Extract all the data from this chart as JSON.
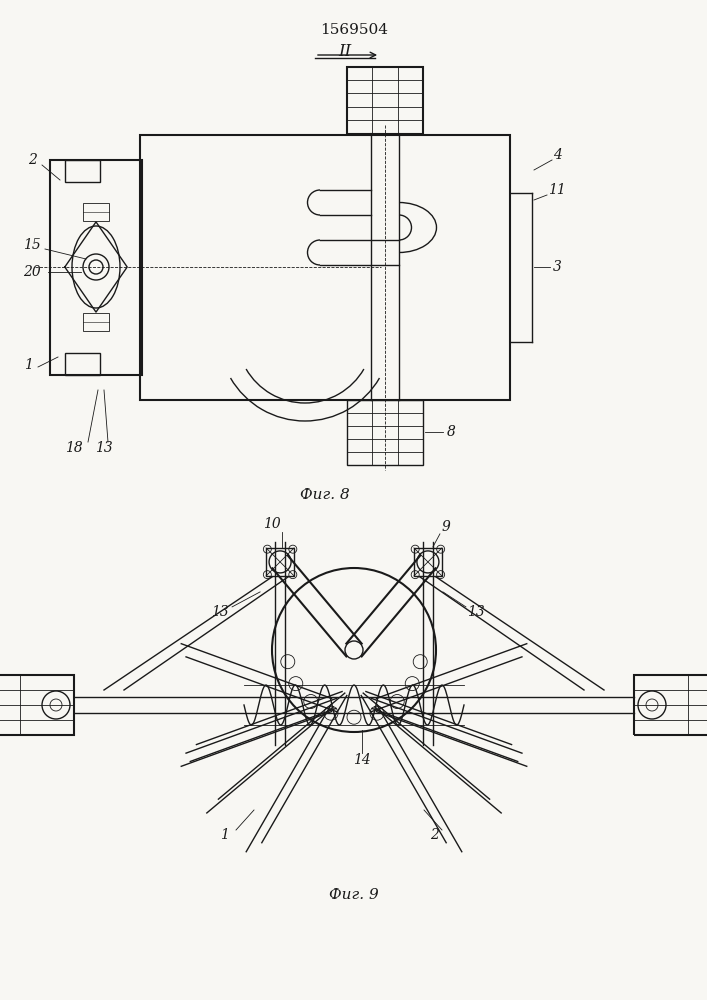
{
  "title": "1569504",
  "fig8_label": "Фиг. 8",
  "fig9_label": "Фиг. 9",
  "arrow_label": "II",
  "bg_color": "#f8f7f3",
  "line_color": "#1a1a1a",
  "fig_width": 7.07,
  "fig_height": 10.0,
  "dpi": 100
}
